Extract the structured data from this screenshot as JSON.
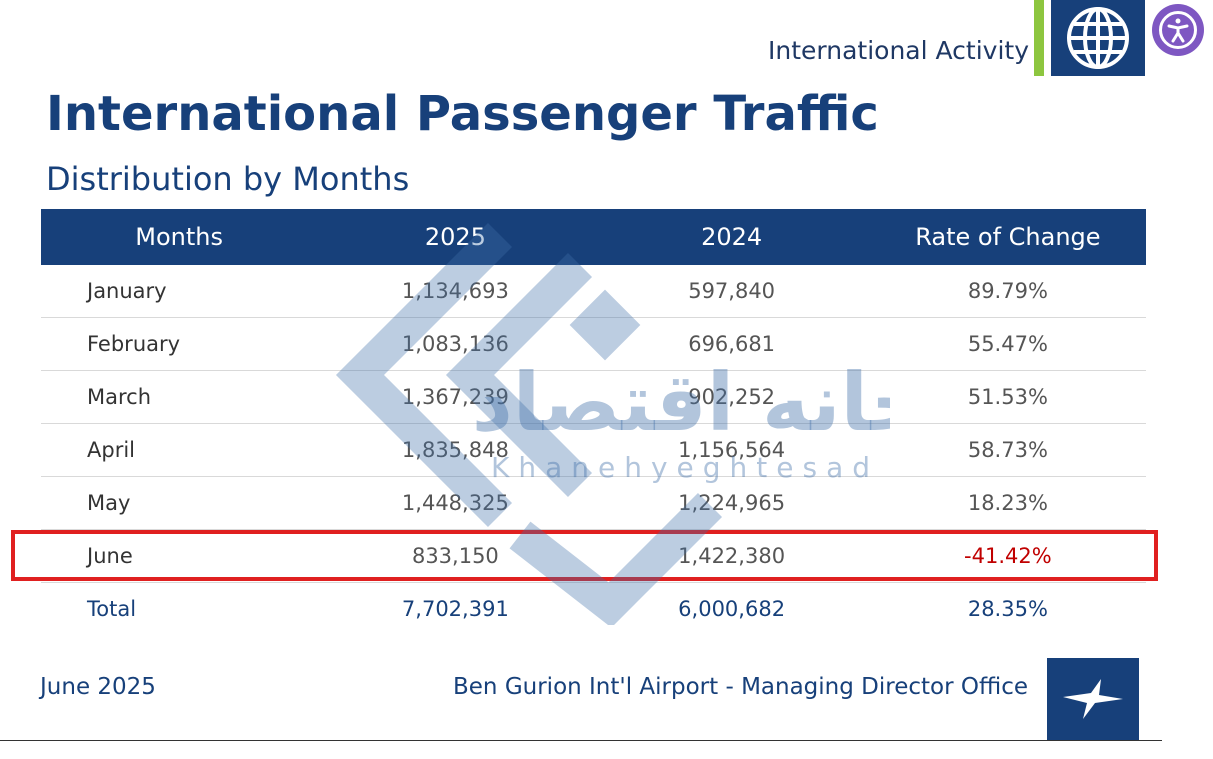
{
  "header": {
    "section_label": "International Activity",
    "globe_icon": "globe-icon",
    "accessibility_icon": "accessibility-icon"
  },
  "title": "International Passenger Traffic",
  "subtitle": "Distribution by Months",
  "table": {
    "columns": [
      "Months",
      "2025",
      "2024",
      "Rate of Change"
    ],
    "rows": [
      {
        "month": "January",
        "y2025": "1,134,693",
        "y2024": "597,840",
        "rate": "89.79%"
      },
      {
        "month": "February",
        "y2025": "1,083,136",
        "y2024": "696,681",
        "rate": "55.47%"
      },
      {
        "month": "March",
        "y2025": "1,367,239",
        "y2024": "902,252",
        "rate": "51.53%"
      },
      {
        "month": "April",
        "y2025": "1,835,848",
        "y2024": "1,156,564",
        "rate": "58.73%"
      },
      {
        "month": "May",
        "y2025": "1,448,325",
        "y2024": "1,224,965",
        "rate": "18.23%"
      },
      {
        "month": "June",
        "y2025": "833,150",
        "y2024": "1,422,380",
        "rate": "-41.42%"
      }
    ],
    "total": {
      "month": "Total",
      "y2025": "7,702,391",
      "y2024": "6,000,682",
      "rate": "28.35%"
    }
  },
  "watermark": {
    "arabic": "خانه اقتصاد",
    "latin": "Khanehyeghtesad"
  },
  "footer": {
    "date": "June 2025",
    "office": "Ben Gurion Int'l Airport - Managing Director Office",
    "logo_icon": "airport-logo-icon"
  },
  "colors": {
    "brand": "#17407a",
    "accent_green": "#8dc63f",
    "negative": "#c00000",
    "highlight": "#e02020"
  }
}
